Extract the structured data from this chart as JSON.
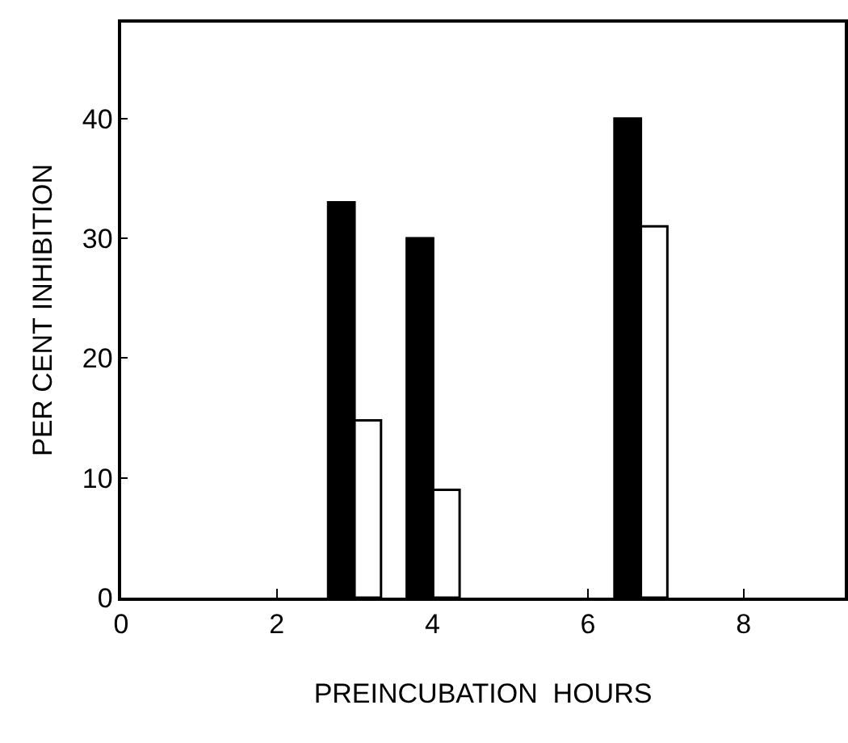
{
  "chart_data": {
    "type": "bar",
    "xlabel": "PREINCUBATION  HOURS",
    "ylabel": "PER CENT INHIBITION",
    "series": [
      {
        "color": "#000000",
        "x": [
          2.83,
          3.84,
          6.51
        ],
        "values": [
          33,
          30,
          40
        ]
      },
      {
        "color": "#ffffff",
        "x": [
          3.17,
          4.18,
          6.85
        ],
        "values": [
          14.8,
          9,
          31
        ]
      }
    ],
    "xlim": [
      0,
      9.3
    ],
    "xticks": [
      0,
      2,
      4,
      6,
      8
    ],
    "ylim": [
      0,
      48
    ],
    "yticks": [
      0,
      10,
      20,
      30,
      40
    ]
  }
}
